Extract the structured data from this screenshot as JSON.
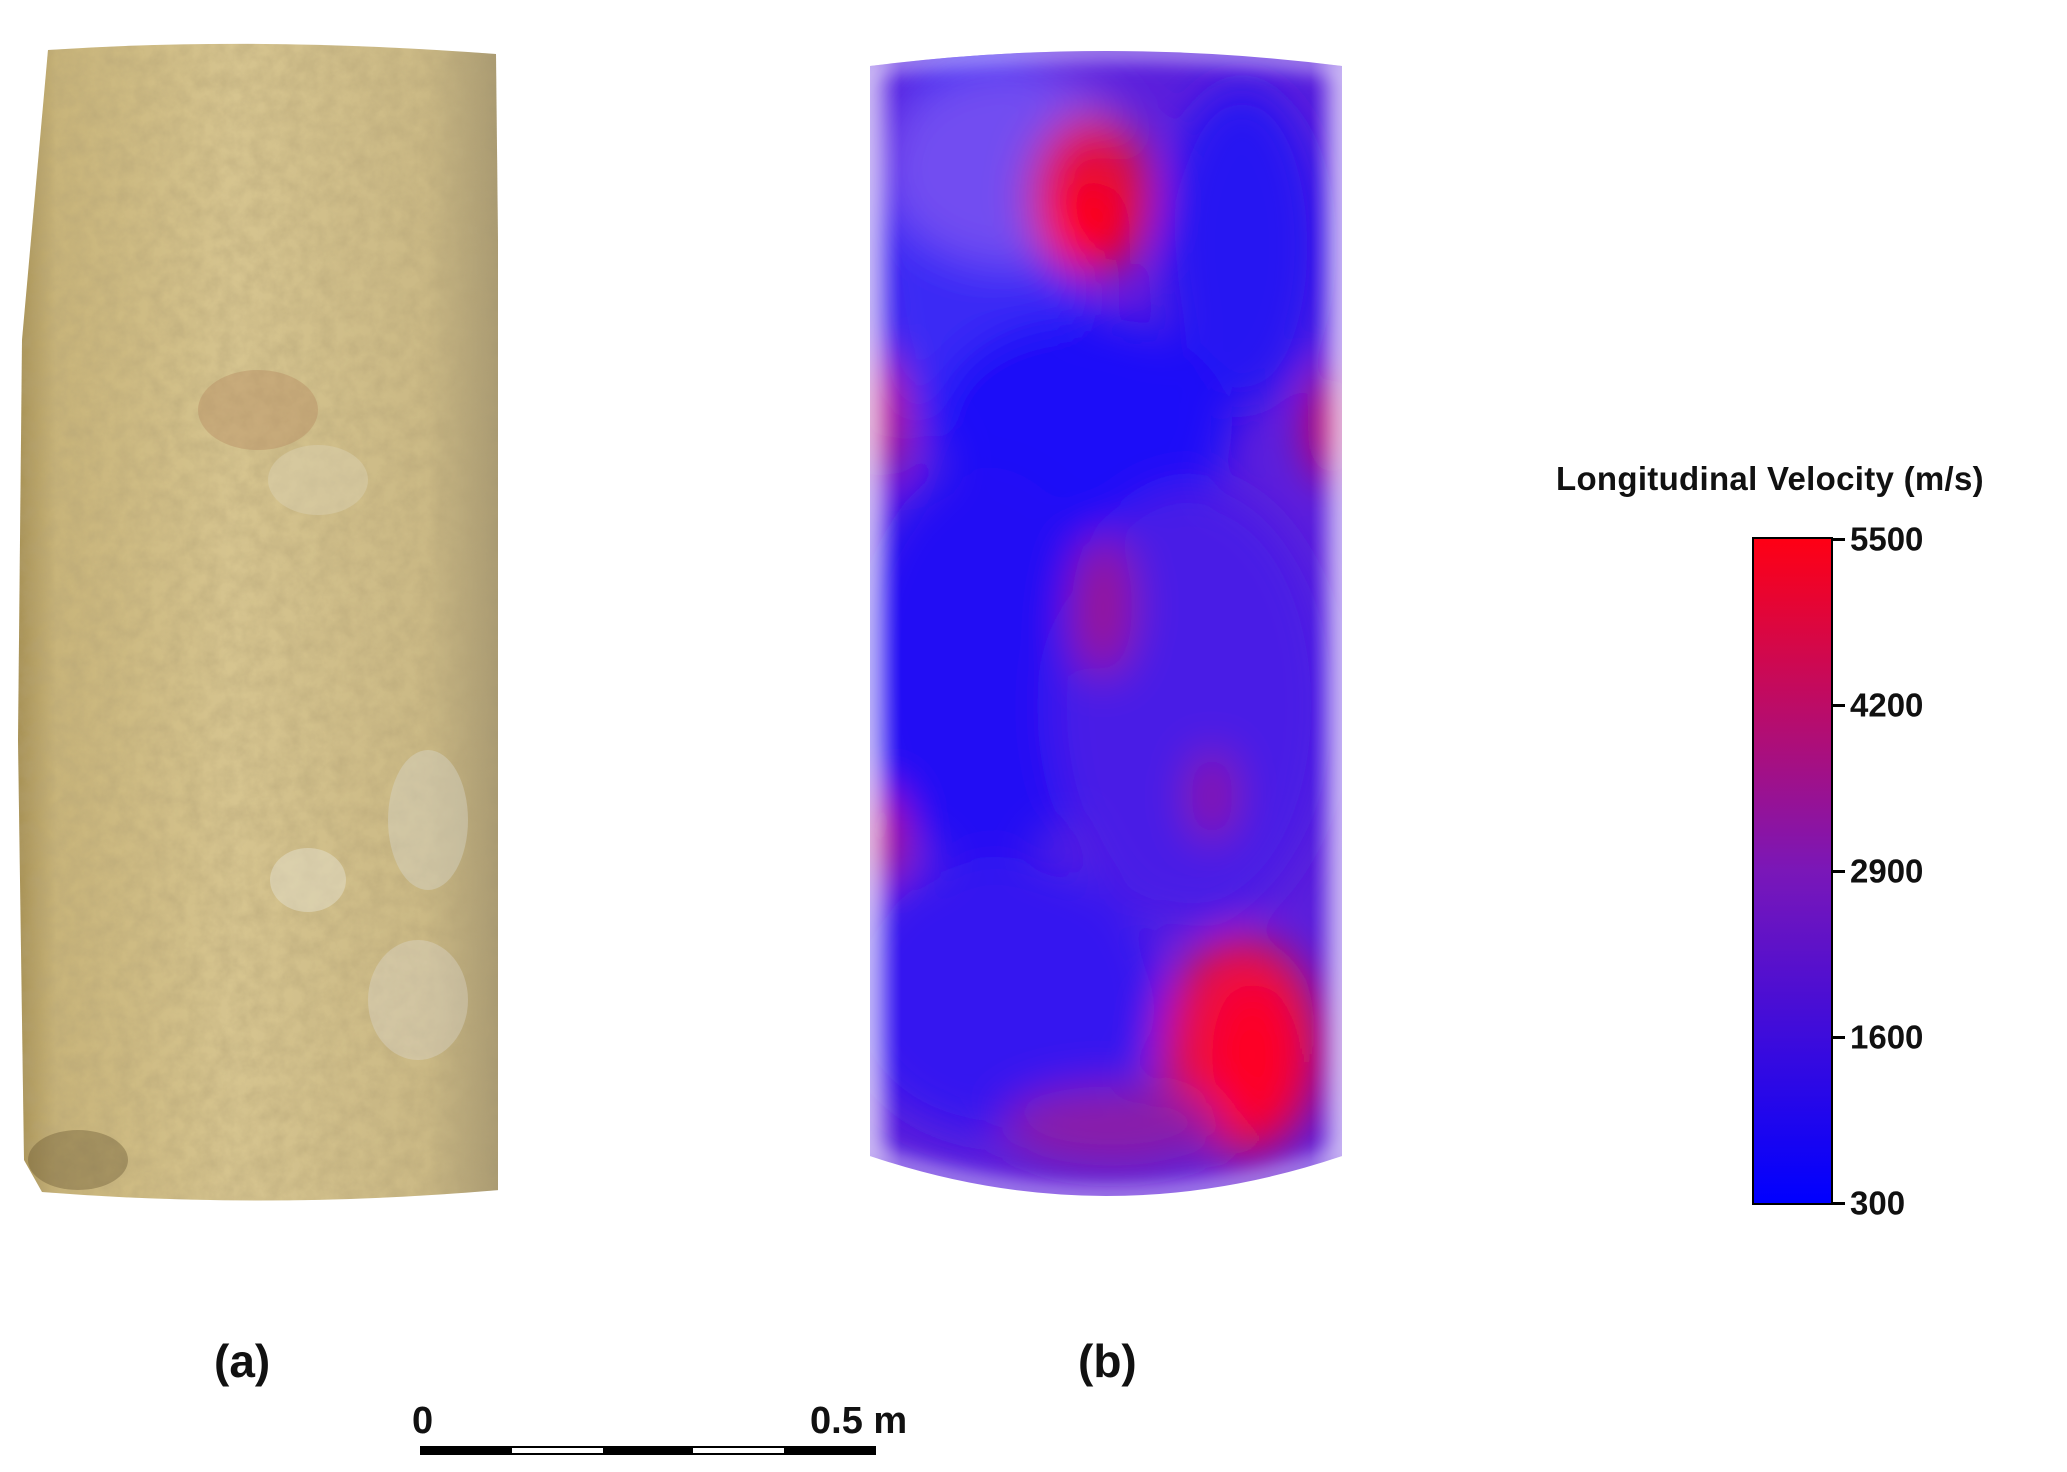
{
  "panels": {
    "a_label": "(a)",
    "b_label": "(b)"
  },
  "legend": {
    "title": "Longitudinal Velocity (m/s)",
    "min": 300,
    "max": 5500,
    "colors": {
      "low": "#0000ff",
      "mid": "#7a17b8",
      "high": "#ff0014"
    },
    "ticks": [
      "5500",
      "4200",
      "2900",
      "1600",
      "300"
    ]
  },
  "scale_bar": {
    "zero_label": "0",
    "end_label": "0.5 m",
    "segments": [
      "black",
      "white",
      "black",
      "white",
      "black"
    ]
  }
}
